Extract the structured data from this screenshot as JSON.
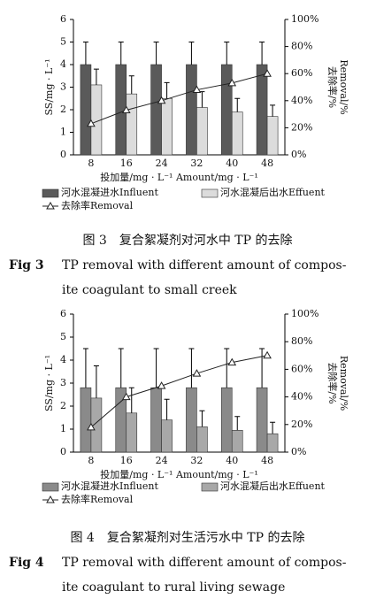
{
  "chart_data": [
    {
      "type": "bar",
      "categories": [
        "8",
        "16",
        "24",
        "32",
        "40",
        "48"
      ],
      "ylim": [
        0,
        6
      ],
      "yticks": [
        0,
        1,
        2,
        3,
        4,
        5,
        6
      ],
      "y2lim": [
        0,
        100
      ],
      "y2ticks": [
        {
          "value": 0,
          "label": "0%"
        },
        {
          "value": 20,
          "label": "20%"
        },
        {
          "value": 40,
          "label": "40%"
        },
        {
          "value": 60,
          "label": "60%"
        },
        {
          "value": 80,
          "label": "80%"
        },
        {
          "value": 100,
          "label": "100%"
        }
      ],
      "ylabel": "SS/mg · L⁻¹",
      "xlabel": "投加量/mg · L⁻¹ Amount/mg · L⁻¹",
      "y2label": [
        "去除率/%",
        "Removal/%"
      ],
      "series": [
        {
          "name": "河水混凝进水Influent",
          "color": "#5a5a5a",
          "values": [
            4.0,
            4.0,
            4.0,
            4.0,
            4.0,
            4.0
          ],
          "errors": [
            1.0,
            1.0,
            1.0,
            1.0,
            1.0,
            1.0
          ]
        },
        {
          "name": "河水混凝后出水Effuent",
          "color": "#dcdcdc",
          "values": [
            3.1,
            2.7,
            2.5,
            2.1,
            1.9,
            1.7
          ],
          "errors": [
            0.7,
            0.8,
            0.7,
            0.7,
            0.6,
            0.5
          ]
        },
        {
          "name": "去除率Removal",
          "color": "#222222",
          "axis": "y2",
          "type": "line",
          "values": [
            23,
            33,
            40,
            48,
            53,
            60
          ]
        }
      ],
      "caption_cn": "图 3　复合絮凝剂对河水中 TP 的去除",
      "fig_label": "Fig 3",
      "caption_en": [
        "TP removal with different amount of compos-",
        "ite coagulant to small creek"
      ]
    },
    {
      "type": "bar",
      "categories": [
        "8",
        "16",
        "24",
        "32",
        "40",
        "48"
      ],
      "ylim": [
        0,
        6
      ],
      "yticks": [
        0,
        1,
        2,
        3,
        4,
        5,
        6
      ],
      "y2lim": [
        0,
        100
      ],
      "y2ticks": [
        {
          "value": 0,
          "label": "0%"
        },
        {
          "value": 20,
          "label": "20%"
        },
        {
          "value": 40,
          "label": "40%"
        },
        {
          "value": 60,
          "label": "60%"
        },
        {
          "value": 80,
          "label": "80%"
        },
        {
          "value": 100,
          "label": "100%"
        }
      ],
      "ylabel": "SS/mg · L⁻¹",
      "xlabel": "投加量/mg · L⁻¹ Amount/mg · L⁻¹",
      "y2label": [
        "去除率/%",
        "Removal/%"
      ],
      "series": [
        {
          "name": "河水混凝进水Influent",
          "color": "#8a8a8a",
          "values": [
            2.8,
            2.8,
            2.8,
            2.8,
            2.8,
            2.8
          ],
          "errors": [
            1.7,
            1.7,
            1.7,
            1.7,
            1.7,
            1.7
          ]
        },
        {
          "name": "河水混凝后出水Effuent",
          "color": "#a8a8a8",
          "values": [
            2.35,
            1.7,
            1.4,
            1.1,
            0.95,
            0.8
          ],
          "errors": [
            1.4,
            1.1,
            0.9,
            0.7,
            0.6,
            0.5
          ]
        },
        {
          "name": "去除率Removal",
          "color": "#222222",
          "axis": "y2",
          "type": "line",
          "values": [
            18,
            40,
            48,
            57,
            65,
            70
          ]
        }
      ],
      "caption_cn": "图 4　复合絮凝剂对生活污水中 TP 的去除",
      "fig_label": "Fig 4",
      "caption_en": [
        "TP removal with different amount of compos-",
        "ite coagulant to rural living sewage"
      ]
    }
  ]
}
